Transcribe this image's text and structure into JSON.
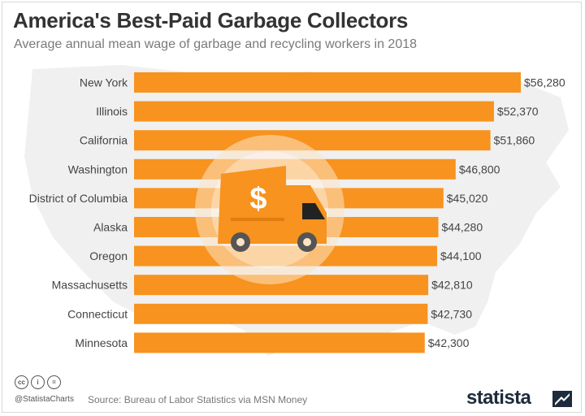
{
  "header": {
    "title": "America's Best-Paid Garbage Collectors",
    "subtitle": "Average annual mean wage of garbage and recycling workers in 2018"
  },
  "chart_data": {
    "type": "bar",
    "orientation": "horizontal",
    "categories": [
      "New York",
      "Illinois",
      "California",
      "Washington",
      "District of Columbia",
      "Alaska",
      "Oregon",
      "Massachusetts",
      "Connecticut",
      "Minnesota"
    ],
    "values": [
      56280,
      52370,
      51860,
      46800,
      45020,
      44280,
      44100,
      42810,
      42730,
      42300
    ],
    "value_labels": [
      "$56,280",
      "$52,370",
      "$51,860",
      "$46,800",
      "$45,020",
      "$44,280",
      "$44,100",
      "$42,810",
      "$42,730",
      "$42,300"
    ],
    "xlim": [
      0,
      56280
    ],
    "bar_color": "#f7931e",
    "grid": false
  },
  "footer": {
    "cc_icons": [
      "cc-icon",
      "attribution-icon",
      "no-derivatives-icon"
    ],
    "handle": "@StatistaCharts",
    "source": "Source: Bureau of Labor Statistics via MSN Money",
    "brand": "statista"
  },
  "colors": {
    "accent": "#f7931e",
    "title": "#333333",
    "brand": "#1d2b3a"
  }
}
